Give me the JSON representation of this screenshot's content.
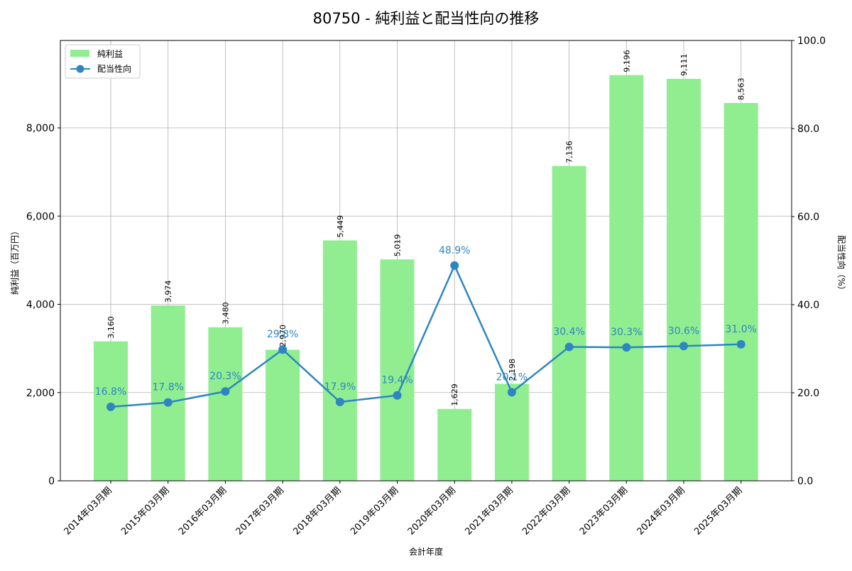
{
  "chart_data": {
    "type": "bar+line",
    "title": "80750 - 純利益と配当性向の推移",
    "xlabel": "会計年度",
    "ylabel_left": "純利益（百万円）",
    "ylabel_right": "配当性向（%）",
    "categories": [
      "2014年03月期",
      "2015年03月期",
      "2016年03月期",
      "2017年03月期",
      "2018年03月期",
      "2019年03月期",
      "2020年03月期",
      "2021年03月期",
      "2022年03月期",
      "2023年03月期",
      "2024年03月期",
      "2025年03月期"
    ],
    "series": [
      {
        "name": "純利益",
        "type": "bar",
        "axis": "left",
        "color": "#90ee90",
        "values": [
          3160,
          3974,
          3480,
          2970,
          5449,
          5019,
          1629,
          2198,
          7136,
          9196,
          9111,
          8563
        ],
        "labels": [
          "3,160",
          "3,974",
          "3,480",
          "2,970",
          "5,449",
          "5,019",
          "1,629",
          "2,198",
          "7,136",
          "9,196",
          "9,111",
          "8,563"
        ]
      },
      {
        "name": "配当性向",
        "type": "line",
        "axis": "right",
        "color": "#2e86c1",
        "values": [
          16.8,
          17.8,
          20.3,
          29.8,
          17.9,
          19.4,
          48.9,
          20.1,
          30.4,
          30.3,
          30.6,
          31.0
        ],
        "labels": [
          "16.8%",
          "17.8%",
          "20.3%",
          "29.8%",
          "17.9%",
          "19.4%",
          "48.9%",
          "20.1%",
          "30.4%",
          "30.3%",
          "30.6%",
          "31.0%"
        ]
      }
    ],
    "ylim_left": [
      0,
      9980
    ],
    "ylim_right": [
      0,
      100
    ],
    "yticks_left": [
      "0",
      "2,000",
      "4,000",
      "6,000",
      "8,000"
    ],
    "yticks_right": [
      "0.0",
      "20.0",
      "40.0",
      "60.0",
      "80.0",
      "100.0"
    ],
    "grid": true,
    "legend": {
      "position": "upper left",
      "entries": [
        "純利益",
        "配当性向"
      ]
    }
  }
}
